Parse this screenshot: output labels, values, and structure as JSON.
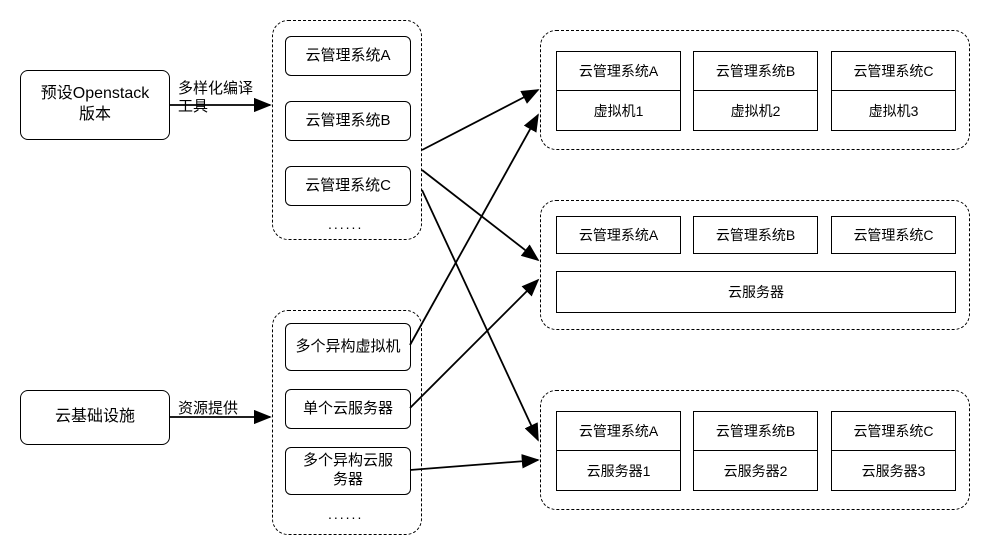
{
  "type": "flowchart",
  "background_color": "#ffffff",
  "stroke_color": "#000000",
  "fontsize_main": 16,
  "fontsize_inner": 15,
  "fontsize_small": 14,
  "left_inputs": {
    "openstack": {
      "label": "预设Openstack\n版本"
    },
    "infra": {
      "label": "云基础设施"
    }
  },
  "edge_labels": {
    "compile": "多样化编译\n工具",
    "resource": "资源提供"
  },
  "middle_top": {
    "items": [
      "云管理系统A",
      "云管理系统B",
      "云管理系统C"
    ],
    "ellipsis": "......"
  },
  "middle_bottom": {
    "items": [
      "多个异构虚拟机",
      "单个云服务器",
      "多个异构云服\n务器"
    ],
    "ellipsis": "......"
  },
  "right_top": {
    "cells": [
      {
        "top": "云管理系统A",
        "bot": "虚拟机1"
      },
      {
        "top": "云管理系统B",
        "bot": "虚拟机2"
      },
      {
        "top": "云管理系统C",
        "bot": "虚拟机3"
      }
    ]
  },
  "right_mid": {
    "headers": [
      "云管理系统A",
      "云管理系统B",
      "云管理系统C"
    ],
    "server": "云服务器"
  },
  "right_bot": {
    "cells": [
      {
        "top": "云管理系统A",
        "bot": "云服务器1"
      },
      {
        "top": "云管理系统B",
        "bot": "云服务器2"
      },
      {
        "top": "云管理系统C",
        "bot": "云服务器3"
      }
    ]
  }
}
